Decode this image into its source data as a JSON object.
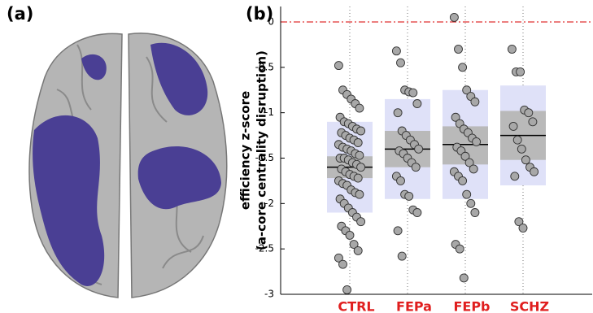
{
  "panel_labels": [
    "(a)",
    "(b)"
  ],
  "chart_data": {
    "type": "scatter",
    "ylabel": [
      "efficiency z-score",
      "(a-core centrality disruption)"
    ],
    "ylim": [
      -3,
      0.17
    ],
    "yticks": [
      0,
      -0.5,
      -1,
      -1.5,
      -2,
      -2.5,
      -3
    ],
    "hline": 0,
    "hline_color": "#e03030",
    "label_color": "#e01e1e",
    "point_color": "#a8a8a8",
    "outer_color": "#dfe1f8",
    "inner_color": "#b9b9b9",
    "series": [
      {
        "name": "CTRL",
        "mean": -1.6,
        "inner": [
          -1.72,
          -1.48
        ],
        "outer": [
          -2.1,
          -1.1
        ],
        "values": [
          -0.48,
          -0.75,
          -0.8,
          -0.85,
          -0.9,
          -0.95,
          -1.05,
          -1.1,
          -1.12,
          -1.15,
          -1.18,
          -1.2,
          -1.22,
          -1.25,
          -1.28,
          -1.3,
          -1.33,
          -1.35,
          -1.38,
          -1.4,
          -1.42,
          -1.45,
          -1.47,
          -1.5,
          -1.5,
          -1.52,
          -1.55,
          -1.57,
          -1.6,
          -1.62,
          -1.65,
          -1.68,
          -1.7,
          -1.72,
          -1.75,
          -1.78,
          -1.8,
          -1.85,
          -1.88,
          -1.9,
          -1.95,
          -2.0,
          -2.05,
          -2.1,
          -2.15,
          -2.2,
          -2.25,
          -2.3,
          -2.35,
          -2.45,
          -2.52,
          -2.6,
          -2.67,
          -2.95
        ]
      },
      {
        "name": "FEPa",
        "mean": -1.4,
        "inner": [
          -1.6,
          -1.2
        ],
        "outer": [
          -1.95,
          -0.85
        ],
        "values": [
          -0.32,
          -0.45,
          -0.75,
          -0.77,
          -0.78,
          -0.9,
          -1.0,
          -1.2,
          -1.25,
          -1.3,
          -1.35,
          -1.4,
          -1.42,
          -1.45,
          -1.5,
          -1.55,
          -1.6,
          -1.7,
          -1.75,
          -1.9,
          -1.92,
          -2.07,
          -2.1,
          -2.3,
          -2.58
        ]
      },
      {
        "name": "FEPb",
        "mean": -1.35,
        "inner": [
          -1.57,
          -1.15
        ],
        "outer": [
          -1.95,
          -0.75
        ],
        "values": [
          0.05,
          -0.3,
          -0.5,
          -0.75,
          -0.82,
          -0.88,
          -1.05,
          -1.12,
          -1.18,
          -1.22,
          -1.28,
          -1.32,
          -1.38,
          -1.42,
          -1.48,
          -1.55,
          -1.62,
          -1.65,
          -1.7,
          -1.75,
          -1.9,
          -2.0,
          -2.1,
          -2.45,
          -2.5,
          -2.82
        ]
      },
      {
        "name": "SCHZ",
        "mean": -1.25,
        "inner": [
          -1.52,
          -0.98
        ],
        "outer": [
          -1.8,
          -0.7
        ],
        "values": [
          -0.3,
          -0.55,
          -0.55,
          -0.97,
          -1.0,
          -1.1,
          -1.15,
          -1.3,
          -1.4,
          -1.52,
          -1.6,
          -1.65,
          -1.7,
          -2.2,
          -2.27
        ]
      }
    ]
  }
}
